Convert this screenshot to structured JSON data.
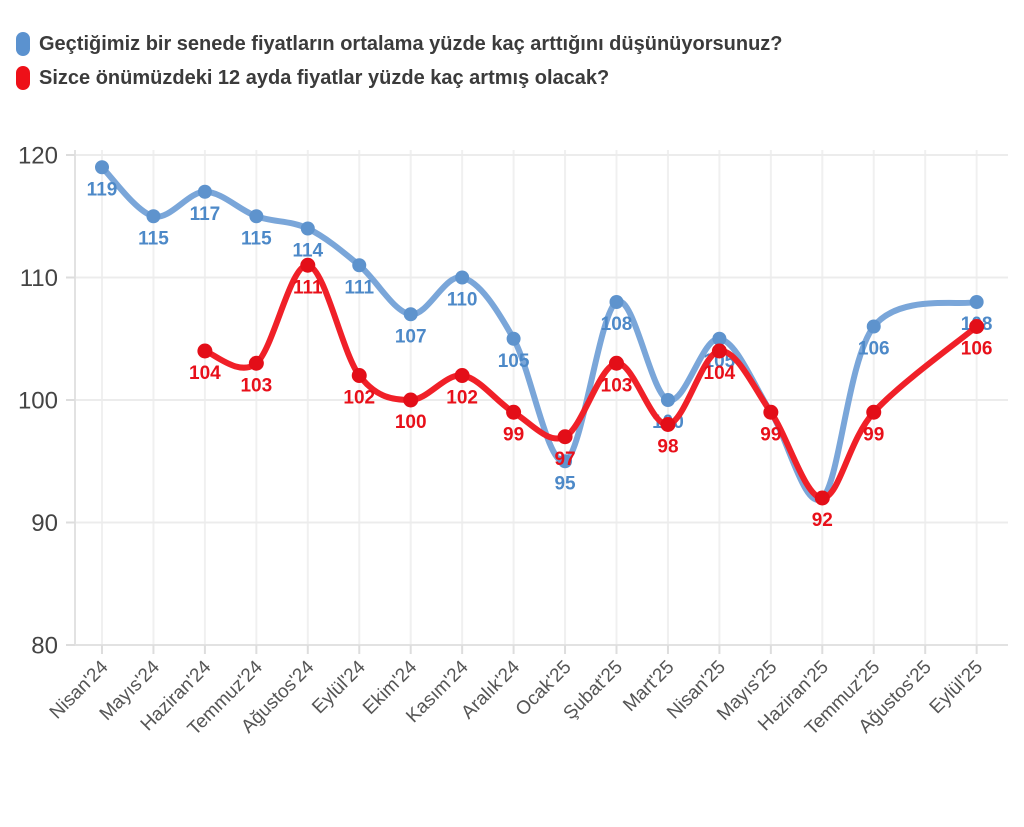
{
  "legend": {
    "items": [
      {
        "id": "perceived-past-year",
        "label": "Geçtiğimiz bir senede fiyatların ortalama yüzde kaç arttığını düşünüyorsunuz?",
        "color": "#5b92cf"
      },
      {
        "id": "expected-next-12m",
        "label": "Sizce önümüzdeki 12 ayda fiyatlar yüzde kaç artmış olacak?",
        "color": "#ee1018"
      }
    ]
  },
  "chart_data": {
    "type": "line",
    "curve": "smooth-spline",
    "grid": true,
    "legend_position": "top-left",
    "categories": [
      "Nisan'24",
      "Mayıs'24",
      "Haziran'24",
      "Temmuz'24",
      "Ağustos'24",
      "Eylül'24",
      "Ekim'24",
      "Kasım'24",
      "Aralık'24",
      "Ocak'25",
      "Şubat'25",
      "Mart'25",
      "Nisan'25",
      "Mayıs'25",
      "Haziran'25",
      "Temmuz'25",
      "Ağustos'25",
      "Eylül'25"
    ],
    "yticks": [
      80,
      90,
      100,
      110,
      120
    ],
    "ylim": [
      80,
      120
    ],
    "xlabel": "",
    "ylabel": "",
    "series": [
      {
        "name": "Geçtiğimiz bir senede fiyatların ortalama yüzde kaç arttığını düşünüyorsunuz?",
        "values": [
          119,
          115,
          117,
          115,
          114,
          111,
          107,
          110,
          105,
          95,
          108,
          100,
          105,
          99,
          92,
          106,
          null,
          108
        ],
        "visible_point_labels": [
          "119",
          "115",
          "117",
          "115",
          "114",
          "111",
          "107",
          "110",
          "105",
          "95",
          "108",
          "100",
          "105",
          null,
          null,
          "106",
          null,
          "108"
        ],
        "line_color": "#7aa6d9",
        "marker_color": "#5e93cd",
        "label_color": "#4d89c8"
      },
      {
        "name": "Sizce önümüzdeki 12 ayda fiyatlar yüzde kaç artmış olacak?",
        "values": [
          null,
          null,
          104,
          103,
          111,
          102,
          100,
          102,
          99,
          97,
          103,
          98,
          104,
          99,
          92,
          99,
          null,
          106
        ],
        "visible_point_labels": [
          null,
          null,
          "104",
          "103",
          "111",
          "102",
          "100",
          "102",
          "99",
          "97",
          "103",
          "98",
          "104",
          "99",
          "92",
          "99",
          null,
          "106"
        ],
        "line_color": "#f02028",
        "marker_color": "#e30e18",
        "label_color": "#e8101a"
      }
    ],
    "axis_text_colors": {
      "y": "#444444",
      "x": "#555555"
    }
  }
}
